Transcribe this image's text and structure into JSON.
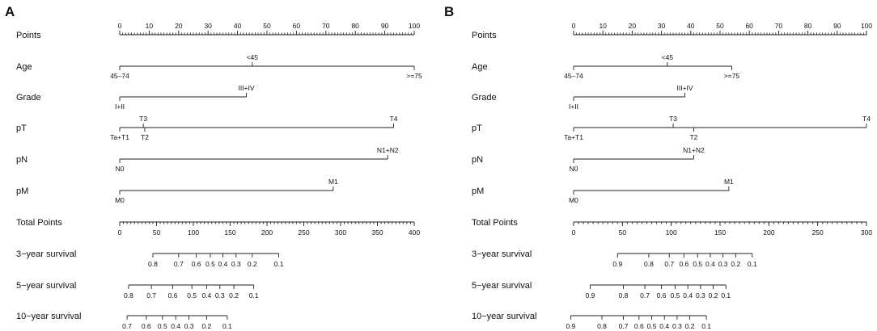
{
  "chart_data": [
    {
      "type": "nomogram",
      "panel": "A",
      "rows": [
        {
          "label": "Points",
          "kind": "axis",
          "min": 0,
          "max": 100,
          "major": [
            0,
            10,
            20,
            30,
            40,
            50,
            60,
            70,
            80,
            90,
            100
          ],
          "minor_step": 1
        },
        {
          "label": "Age",
          "kind": "factor",
          "levels": [
            {
              "name": "45–74",
              "value": 0,
              "side": "below"
            },
            {
              "name": "<45",
              "value": 45,
              "side": "above"
            },
            {
              "name": ">=75",
              "value": 100,
              "side": "below"
            }
          ]
        },
        {
          "label": "Grade",
          "kind": "factor",
          "levels": [
            {
              "name": "I+II",
              "value": 0,
              "side": "below"
            },
            {
              "name": "III+IV",
              "value": 43,
              "side": "above"
            }
          ]
        },
        {
          "label": "pT",
          "kind": "factor",
          "levels": [
            {
              "name": "Ta+T1",
              "value": 0,
              "side": "below"
            },
            {
              "name": "T3",
              "value": 8,
              "side": "above"
            },
            {
              "name": "T2",
              "value": 8.5,
              "side": "below"
            },
            {
              "name": "T4",
              "value": 93,
              "side": "above"
            }
          ]
        },
        {
          "label": "pN",
          "kind": "factor",
          "levels": [
            {
              "name": "N0",
              "value": 0,
              "side": "below"
            },
            {
              "name": "N1+N2",
              "value": 91,
              "side": "above"
            }
          ]
        },
        {
          "label": "pM",
          "kind": "factor",
          "levels": [
            {
              "name": "M0",
              "value": 0,
              "side": "below"
            },
            {
              "name": "M1",
              "value": 72.5,
              "side": "above"
            }
          ]
        },
        {
          "label": "Total Points",
          "kind": "axis",
          "min": 0,
          "max": 400,
          "major": [
            0,
            50,
            100,
            150,
            200,
            250,
            300,
            350,
            400
          ],
          "minor_step": 5
        },
        {
          "label": "3−year survival",
          "kind": "survival",
          "ticks": [
            {
              "label": "0.8",
              "tp": 45
            },
            {
              "label": "0.7",
              "tp": 80
            },
            {
              "label": "0.6",
              "tp": 104
            },
            {
              "label": "0.5",
              "tp": 123
            },
            {
              "label": "0.4",
              "tp": 140
            },
            {
              "label": "0.3",
              "tp": 158
            },
            {
              "label": "0.2",
              "tp": 180
            },
            {
              "label": "0.1",
              "tp": 216
            }
          ]
        },
        {
          "label": "5−year survival",
          "kind": "survival",
          "ticks": [
            {
              "label": "0.8",
              "tp": 12
            },
            {
              "label": "0.7",
              "tp": 43
            },
            {
              "label": "0.6",
              "tp": 72
            },
            {
              "label": "0.5",
              "tp": 98
            },
            {
              "label": "0.4",
              "tp": 118
            },
            {
              "label": "0.3",
              "tp": 136
            },
            {
              "label": "0.2",
              "tp": 155
            },
            {
              "label": "0.1",
              "tp": 182
            }
          ]
        },
        {
          "label": "10−year survival",
          "kind": "survival",
          "ticks": [
            {
              "label": "0.7",
              "tp": 10
            },
            {
              "label": "0.6",
              "tp": 36
            },
            {
              "label": "0.5",
              "tp": 58
            },
            {
              "label": "0.4",
              "tp": 76
            },
            {
              "label": "0.3",
              "tp": 94
            },
            {
              "label": "0.2",
              "tp": 118
            },
            {
              "label": "0.1",
              "tp": 146
            }
          ]
        }
      ]
    },
    {
      "type": "nomogram",
      "panel": "B",
      "rows": [
        {
          "label": "Points",
          "kind": "axis",
          "min": 0,
          "max": 100,
          "major": [
            0,
            10,
            20,
            30,
            40,
            50,
            60,
            70,
            80,
            90,
            100
          ],
          "minor_step": 1
        },
        {
          "label": "Age",
          "kind": "factor",
          "levels": [
            {
              "name": "45–74",
              "value": 0,
              "side": "below"
            },
            {
              "name": "<45",
              "value": 32,
              "side": "above"
            },
            {
              "name": ">=75",
              "value": 54,
              "side": "below"
            }
          ]
        },
        {
          "label": "Grade",
          "kind": "factor",
          "levels": [
            {
              "name": "I+II",
              "value": 0,
              "side": "below"
            },
            {
              "name": "III+IV",
              "value": 38,
              "side": "above"
            }
          ]
        },
        {
          "label": "pT",
          "kind": "factor",
          "levels": [
            {
              "name": "Ta+T1",
              "value": 0,
              "side": "below"
            },
            {
              "name": "T3",
              "value": 34,
              "side": "above"
            },
            {
              "name": "T2",
              "value": 41,
              "side": "below"
            },
            {
              "name": "T4",
              "value": 100,
              "side": "above"
            }
          ]
        },
        {
          "label": "pN",
          "kind": "factor",
          "levels": [
            {
              "name": "N0",
              "value": 0,
              "side": "below"
            },
            {
              "name": "N1+N2",
              "value": 41,
              "side": "above"
            }
          ]
        },
        {
          "label": "pM",
          "kind": "factor",
          "levels": [
            {
              "name": "M0",
              "value": 0,
              "side": "below"
            },
            {
              "name": "M1",
              "value": 53,
              "side": "above"
            }
          ]
        },
        {
          "label": "Total Points",
          "kind": "axis",
          "min": 0,
          "max": 300,
          "major": [
            0,
            50,
            100,
            150,
            200,
            250,
            300
          ],
          "minor_step": 5
        },
        {
          "label": "3−year survival",
          "kind": "survival",
          "ticks": [
            {
              "label": "0.9",
              "tp": 45
            },
            {
              "label": "0.8",
              "tp": 77
            },
            {
              "label": "0.7",
              "tp": 98
            },
            {
              "label": "0.6",
              "tp": 113
            },
            {
              "label": "0.5",
              "tp": 127
            },
            {
              "label": "0.4",
              "tp": 140
            },
            {
              "label": "0.3",
              "tp": 153
            },
            {
              "label": "0.2",
              "tp": 166
            },
            {
              "label": "0.1",
              "tp": 183
            }
          ]
        },
        {
          "label": "5−year survival",
          "kind": "survival",
          "ticks": [
            {
              "label": "0.9",
              "tp": 17
            },
            {
              "label": "0.8",
              "tp": 51
            },
            {
              "label": "0.7",
              "tp": 73
            },
            {
              "label": "0.6",
              "tp": 90
            },
            {
              "label": "0.5",
              "tp": 104
            },
            {
              "label": "0.4",
              "tp": 117
            },
            {
              "label": "0.3",
              "tp": 130
            },
            {
              "label": "0.2",
              "tp": 143
            },
            {
              "label": "0.1",
              "tp": 156
            }
          ]
        },
        {
          "label": "10−year survival",
          "kind": "survival",
          "ticks": [
            {
              "label": "0.9",
              "tp": -3
            },
            {
              "label": "0.8",
              "tp": 29
            },
            {
              "label": "0.7",
              "tp": 51
            },
            {
              "label": "0.6",
              "tp": 67
            },
            {
              "label": "0.5",
              "tp": 80
            },
            {
              "label": "0.4",
              "tp": 93
            },
            {
              "label": "0.3",
              "tp": 106
            },
            {
              "label": "0.2",
              "tp": 119
            },
            {
              "label": "0.1",
              "tp": 136
            }
          ]
        }
      ]
    }
  ]
}
